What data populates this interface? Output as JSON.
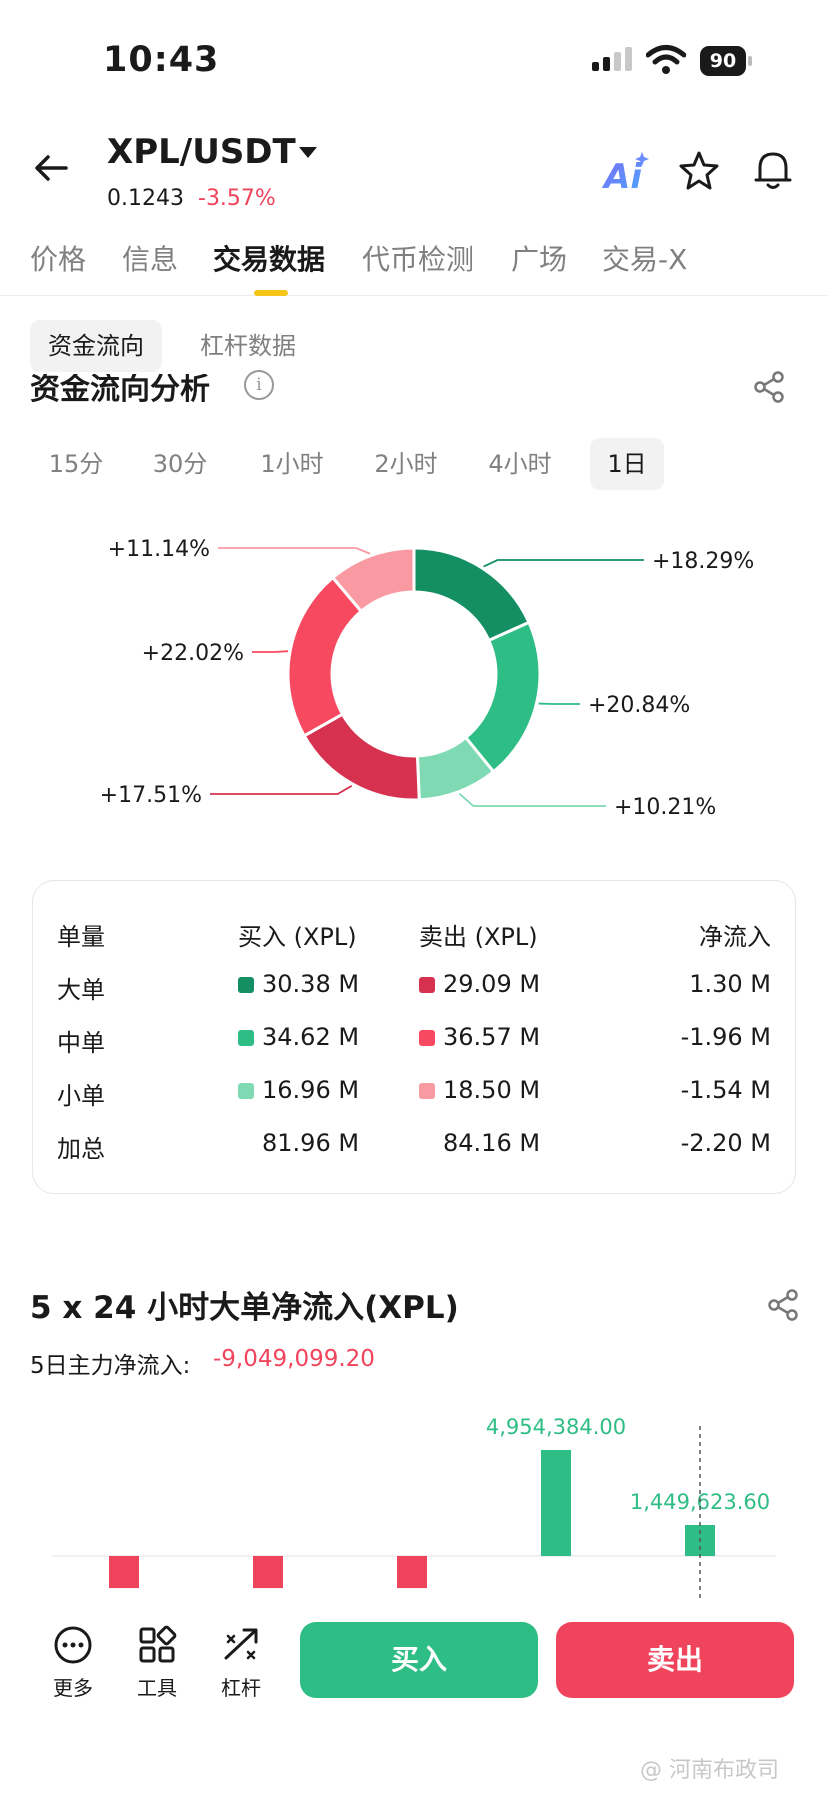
{
  "status_bar": {
    "time": "10:43",
    "battery": "90"
  },
  "header": {
    "pair": "XPL/USDT",
    "price": "0.1243",
    "change": "-3.57%",
    "ai_label": "Ai"
  },
  "tabs": [
    "价格",
    "信息",
    "交易数据",
    "代币检测",
    "广场",
    "交易-X"
  ],
  "active_tab": "交易数据",
  "subtabs": [
    "资金流向",
    "杠杆数据"
  ],
  "section_title": "资金流向分析",
  "info_glyph": "i",
  "timeframes": [
    "15分",
    "30分",
    "1小时",
    "2小时",
    "4小时",
    "1日"
  ],
  "active_timeframe": "1日",
  "colors": {
    "buy_large": "#148f63",
    "buy_medium": "#2ebd85",
    "buy_small": "#7fd9b3",
    "sell_large": "#d63250",
    "sell_medium": "#f7495f",
    "sell_small": "#f99aa3",
    "up": "#2ebd85",
    "down": "#f0445c"
  },
  "chart_data": [
    {
      "type": "pie",
      "categories": [
        "买入大单",
        "买入中单",
        "买入小单",
        "卖出大单",
        "卖出中单",
        "卖出小单"
      ],
      "values": [
        18.29,
        20.84,
        10.21,
        17.51,
        22.02,
        11.14
      ],
      "labels": [
        "+18.29%",
        "+20.84%",
        "+10.21%",
        "+17.51%",
        "+22.02%",
        "+11.14%"
      ]
    },
    {
      "type": "bar",
      "title": "5 x 24 小时大单净流入(XPL)",
      "values": [
        -1500000,
        -1500000,
        -1500000,
        4954384.0,
        1449623.6
      ],
      "labels": [
        "",
        "",
        "",
        "4,954,384.00",
        "1,449,623.60"
      ]
    }
  ],
  "table": {
    "headers": [
      "单量",
      "买入 (XPL)",
      "卖出 (XPL)",
      "净流入"
    ],
    "rows": [
      {
        "name": "大单",
        "buy": "30.38 M",
        "sell": "29.09 M",
        "net": "1.30 M"
      },
      {
        "name": "中单",
        "buy": "34.62 M",
        "sell": "36.57 M",
        "net": "-1.96 M"
      },
      {
        "name": "小单",
        "buy": "16.96 M",
        "sell": "18.50 M",
        "net": "-1.54 M"
      },
      {
        "name": "加总",
        "buy": "81.96 M",
        "sell": "84.16 M",
        "net": "-2.20 M"
      }
    ]
  },
  "section2": {
    "title": "5 x 24 小时大单净流入(XPL)",
    "net_label": "5日主力净流入:",
    "net_value": "-9,049,099.20"
  },
  "bottom_bar": {
    "more": "更多",
    "tools": "工具",
    "leverage": "杠杆",
    "buy": "买入",
    "sell": "卖出",
    "watermark": "@ 河南布政司"
  }
}
